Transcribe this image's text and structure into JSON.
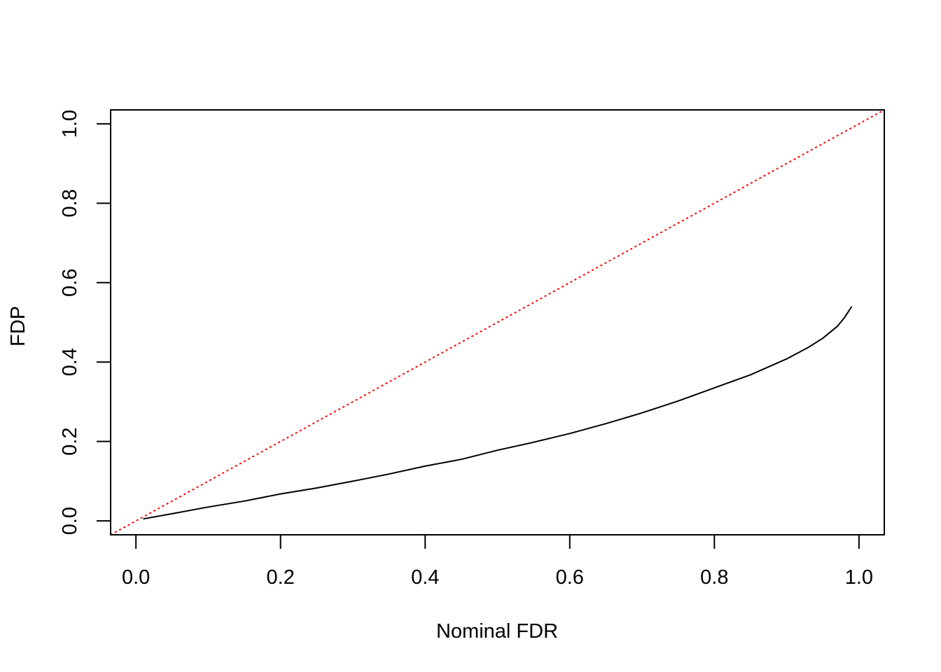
{
  "chart_data": {
    "type": "line",
    "title": "",
    "xlabel": "Nominal FDR",
    "ylabel": "FDP",
    "xlim": [
      -0.035,
      1.035
    ],
    "ylim": [
      -0.035,
      1.035
    ],
    "xticks": [
      "0.0",
      "0.2",
      "0.4",
      "0.6",
      "0.8",
      "1.0"
    ],
    "yticks": [
      "0.0",
      "0.2",
      "0.4",
      "0.6",
      "0.8",
      "1.0"
    ],
    "grid": false,
    "legend": "none",
    "series": [
      {
        "style": "solid",
        "color": "#000000",
        "x": [
          0.01,
          0.05,
          0.1,
          0.15,
          0.2,
          0.25,
          0.3,
          0.35,
          0.4,
          0.45,
          0.5,
          0.55,
          0.6,
          0.65,
          0.7,
          0.75,
          0.8,
          0.85,
          0.9,
          0.93,
          0.95,
          0.97,
          0.98,
          0.99
        ],
        "y": [
          0.005,
          0.018,
          0.035,
          0.05,
          0.068,
          0.083,
          0.1,
          0.118,
          0.138,
          0.155,
          0.178,
          0.198,
          0.22,
          0.245,
          0.272,
          0.302,
          0.335,
          0.368,
          0.408,
          0.437,
          0.46,
          0.49,
          0.512,
          0.54
        ]
      },
      {
        "style": "dotted",
        "color": "#ff0000",
        "x": [
          -0.035,
          1.035
        ],
        "y": [
          -0.035,
          1.035
        ]
      }
    ]
  }
}
